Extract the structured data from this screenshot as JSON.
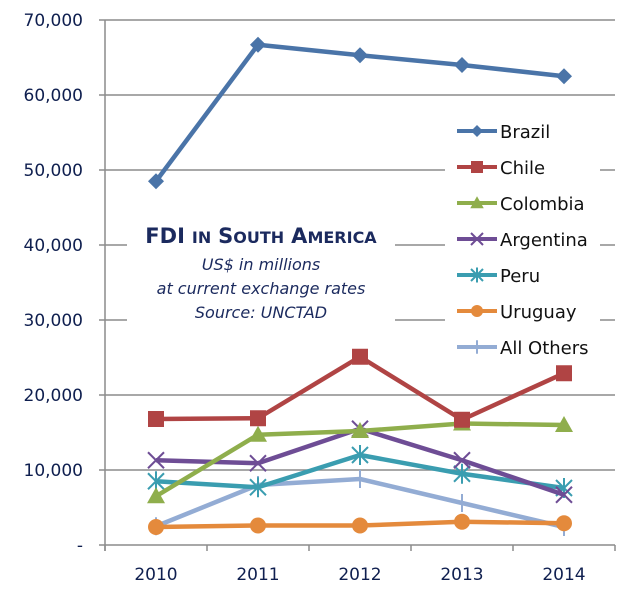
{
  "chart_data": {
    "type": "line",
    "title": "FDI in South America",
    "subtitle_lines": [
      "US$ in millions",
      "at current exchange rates",
      "Source: UNCTAD"
    ],
    "xlabel": "",
    "ylabel": "",
    "categories": [
      "2010",
      "2011",
      "2012",
      "2013",
      "2014"
    ],
    "ylim": [
      0,
      70000
    ],
    "yticks": [
      0,
      10000,
      20000,
      30000,
      40000,
      50000,
      60000,
      70000
    ],
    "ytick_labels": [
      "-",
      "10,000",
      "20,000",
      "30,000",
      "40,000",
      "50,000",
      "60,000",
      "70,000"
    ],
    "grid": true,
    "legend_position": "right",
    "series": [
      {
        "name": "Brazil",
        "color": "#4a74a8",
        "marker": "diamond",
        "values": [
          48500,
          66700,
          65300,
          64000,
          62500
        ]
      },
      {
        "name": "Chile",
        "color": "#b04444",
        "marker": "square",
        "values": [
          16800,
          16900,
          25100,
          16700,
          22900
        ]
      },
      {
        "name": "Colombia",
        "color": "#8fae4c",
        "marker": "triangle",
        "values": [
          6500,
          14700,
          15200,
          16200,
          16000
        ]
      },
      {
        "name": "Argentina",
        "color": "#6e4d95",
        "marker": "x",
        "values": [
          11300,
          10900,
          15500,
          11300,
          6700
        ]
      },
      {
        "name": "Peru",
        "color": "#3a9db0",
        "marker": "star",
        "values": [
          8500,
          7700,
          12000,
          9500,
          7600
        ]
      },
      {
        "name": "Uruguay",
        "color": "#e48a3c",
        "marker": "circle",
        "values": [
          2400,
          2600,
          2600,
          3100,
          2900
        ]
      },
      {
        "name": "All Others",
        "color": "#93acd4",
        "marker": "plus",
        "values": [
          2500,
          8000,
          8800,
          5600,
          2400
        ]
      }
    ]
  }
}
